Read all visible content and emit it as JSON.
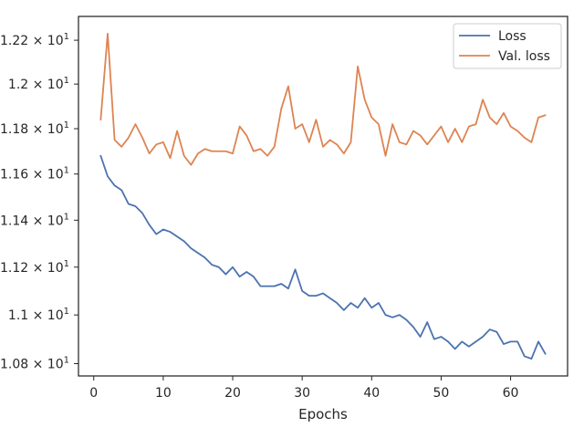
{
  "chart_data": {
    "type": "line",
    "title": "",
    "xlabel": "Epochs",
    "ylabel": "",
    "xlim": [
      -2.2,
      68.2
    ],
    "ylim": [
      10.75,
      12.31
    ],
    "yscale": "log",
    "grid": false,
    "legend_position": "top-right",
    "x_ticks": [
      0,
      10,
      20,
      30,
      40,
      50,
      60
    ],
    "x_tick_labels": [
      "0",
      "10",
      "20",
      "30",
      "40",
      "50",
      "60"
    ],
    "y_ticks": [
      10.8,
      11.0,
      11.2,
      11.4,
      11.6,
      11.8,
      12.0,
      12.2
    ],
    "y_tick_labels": [
      {
        "mantissa": "1.08",
        "base": "10",
        "exp": "1"
      },
      {
        "mantissa": "1.1",
        "base": "10",
        "exp": "1"
      },
      {
        "mantissa": "1.12",
        "base": "10",
        "exp": "1"
      },
      {
        "mantissa": "1.14",
        "base": "10",
        "exp": "1"
      },
      {
        "mantissa": "1.16",
        "base": "10",
        "exp": "1"
      },
      {
        "mantissa": "1.18",
        "base": "10",
        "exp": "1"
      },
      {
        "mantissa": "1.2",
        "base": "10",
        "exp": "1"
      },
      {
        "mantissa": "1.22",
        "base": "10",
        "exp": "1"
      }
    ],
    "x": [
      1,
      2,
      3,
      4,
      5,
      6,
      7,
      8,
      9,
      10,
      11,
      12,
      13,
      14,
      15,
      16,
      17,
      18,
      19,
      20,
      21,
      22,
      23,
      24,
      25,
      26,
      27,
      28,
      29,
      30,
      31,
      32,
      33,
      34,
      35,
      36,
      37,
      38,
      39,
      40,
      41,
      42,
      43,
      44,
      45,
      46,
      47,
      48,
      49,
      50,
      51,
      52,
      53,
      54,
      55,
      56,
      57,
      58,
      59,
      60,
      61,
      62,
      63,
      64,
      65
    ],
    "series": [
      {
        "name": "Loss",
        "color": "#4c72b0",
        "values": [
          11.68,
          11.59,
          11.55,
          11.53,
          11.47,
          11.46,
          11.43,
          11.38,
          11.34,
          11.36,
          11.35,
          11.33,
          11.31,
          11.28,
          11.26,
          11.24,
          11.21,
          11.2,
          11.17,
          11.2,
          11.16,
          11.18,
          11.16,
          11.12,
          11.12,
          11.12,
          11.13,
          11.11,
          11.19,
          11.1,
          11.08,
          11.08,
          11.09,
          11.07,
          11.05,
          11.02,
          11.05,
          11.03,
          11.07,
          11.03,
          11.05,
          11.0,
          10.99,
          11.0,
          10.98,
          10.95,
          10.91,
          10.97,
          10.9,
          10.91,
          10.89,
          10.86,
          10.89,
          10.87,
          10.89,
          10.91,
          10.94,
          10.93,
          10.88,
          10.89,
          10.89,
          10.83,
          10.82,
          10.89,
          10.84
        ]
      },
      {
        "name": "Val. loss",
        "color": "#dd8452",
        "values": [
          11.84,
          12.23,
          11.75,
          11.72,
          11.76,
          11.82,
          11.76,
          11.69,
          11.73,
          11.74,
          11.67,
          11.79,
          11.68,
          11.64,
          11.69,
          11.71,
          11.7,
          11.7,
          11.7,
          11.69,
          11.81,
          11.77,
          11.7,
          11.71,
          11.68,
          11.72,
          11.89,
          11.99,
          11.8,
          11.82,
          11.74,
          11.84,
          11.72,
          11.75,
          11.73,
          11.69,
          11.74,
          12.08,
          11.93,
          11.85,
          11.82,
          11.68,
          11.82,
          11.74,
          11.73,
          11.79,
          11.77,
          11.73,
          11.77,
          11.81,
          11.74,
          11.8,
          11.74,
          11.81,
          11.82,
          11.93,
          11.85,
          11.82,
          11.87,
          11.81,
          11.79,
          11.76,
          11.74,
          11.85,
          11.86
        ]
      }
    ]
  }
}
